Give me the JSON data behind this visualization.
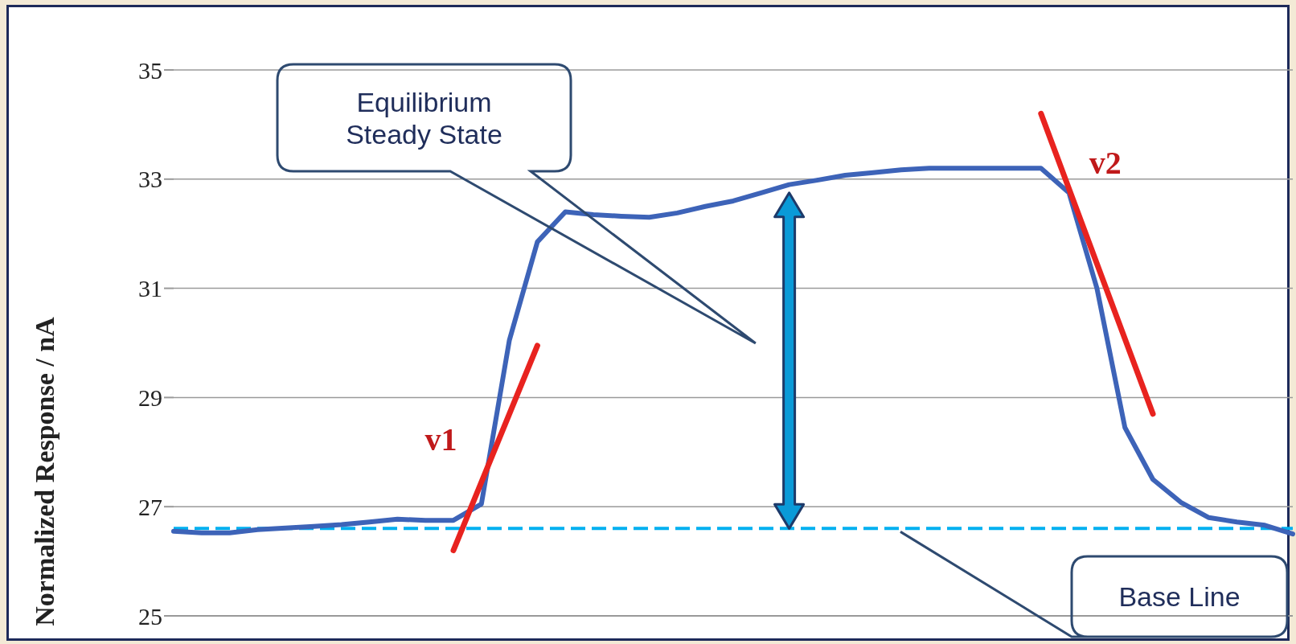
{
  "chart_data": {
    "type": "line",
    "ylabel": "Normalized Response / nA",
    "categories": [
      null,
      null,
      null,
      null,
      null,
      null,
      null,
      null,
      null,
      null,
      null,
      null,
      null,
      null,
      null,
      null,
      null,
      null,
      null,
      null,
      null,
      null,
      null,
      null,
      null,
      null,
      null,
      null,
      null,
      null,
      null,
      null,
      null,
      null,
      null,
      null,
      null,
      null,
      null,
      null,
      null
    ],
    "ylim": [
      25,
      35
    ],
    "yticks": [
      25,
      27,
      29,
      31,
      33,
      35
    ],
    "tick_labels": "y",
    "grid": "y",
    "marker": "none",
    "series": [
      {
        "color": "#3d63b8",
        "values": [
          26.55,
          26.52,
          26.52,
          26.58,
          26.61,
          26.64,
          26.67,
          26.72,
          26.77,
          26.75,
          26.75,
          27.05,
          30.05,
          31.85,
          32.4,
          32.35,
          32.32,
          32.3,
          32.38,
          32.5,
          32.6,
          32.75,
          32.9,
          32.98,
          33.07,
          33.12,
          33.17,
          33.2,
          33.2,
          33.2,
          33.2,
          33.2,
          32.75,
          31.0,
          28.45,
          27.5,
          27.08,
          26.8,
          26.72,
          26.66,
          26.5
        ]
      },
      {
        "name": "v1",
        "color": "#e8231f",
        "values": [
          null,
          null,
          null,
          null,
          null,
          null,
          null,
          null,
          null,
          null,
          26.2,
          null,
          null,
          29.95,
          null,
          null,
          null,
          null,
          null,
          null,
          null,
          null,
          null,
          null,
          null,
          null,
          null,
          null,
          null,
          null,
          null,
          null,
          null,
          null,
          null,
          null,
          null,
          null,
          null,
          null,
          null
        ]
      },
      {
        "name": "v2",
        "color": "#e8231f",
        "values": [
          null,
          null,
          null,
          null,
          null,
          null,
          null,
          null,
          null,
          null,
          null,
          null,
          null,
          null,
          null,
          null,
          null,
          null,
          null,
          null,
          null,
          null,
          null,
          null,
          null,
          null,
          null,
          null,
          null,
          null,
          null,
          34.2,
          null,
          null,
          null,
          28.7,
          null,
          null,
          null,
          null,
          null
        ]
      }
    ],
    "ref_lines": [
      {
        "axis": "y",
        "value": 26.6,
        "label": "Base Line",
        "color": "#00b0f0",
        "line_style": "dashed"
      }
    ],
    "annotations": [
      "Equilibrium Steady State"
    ]
  }
}
